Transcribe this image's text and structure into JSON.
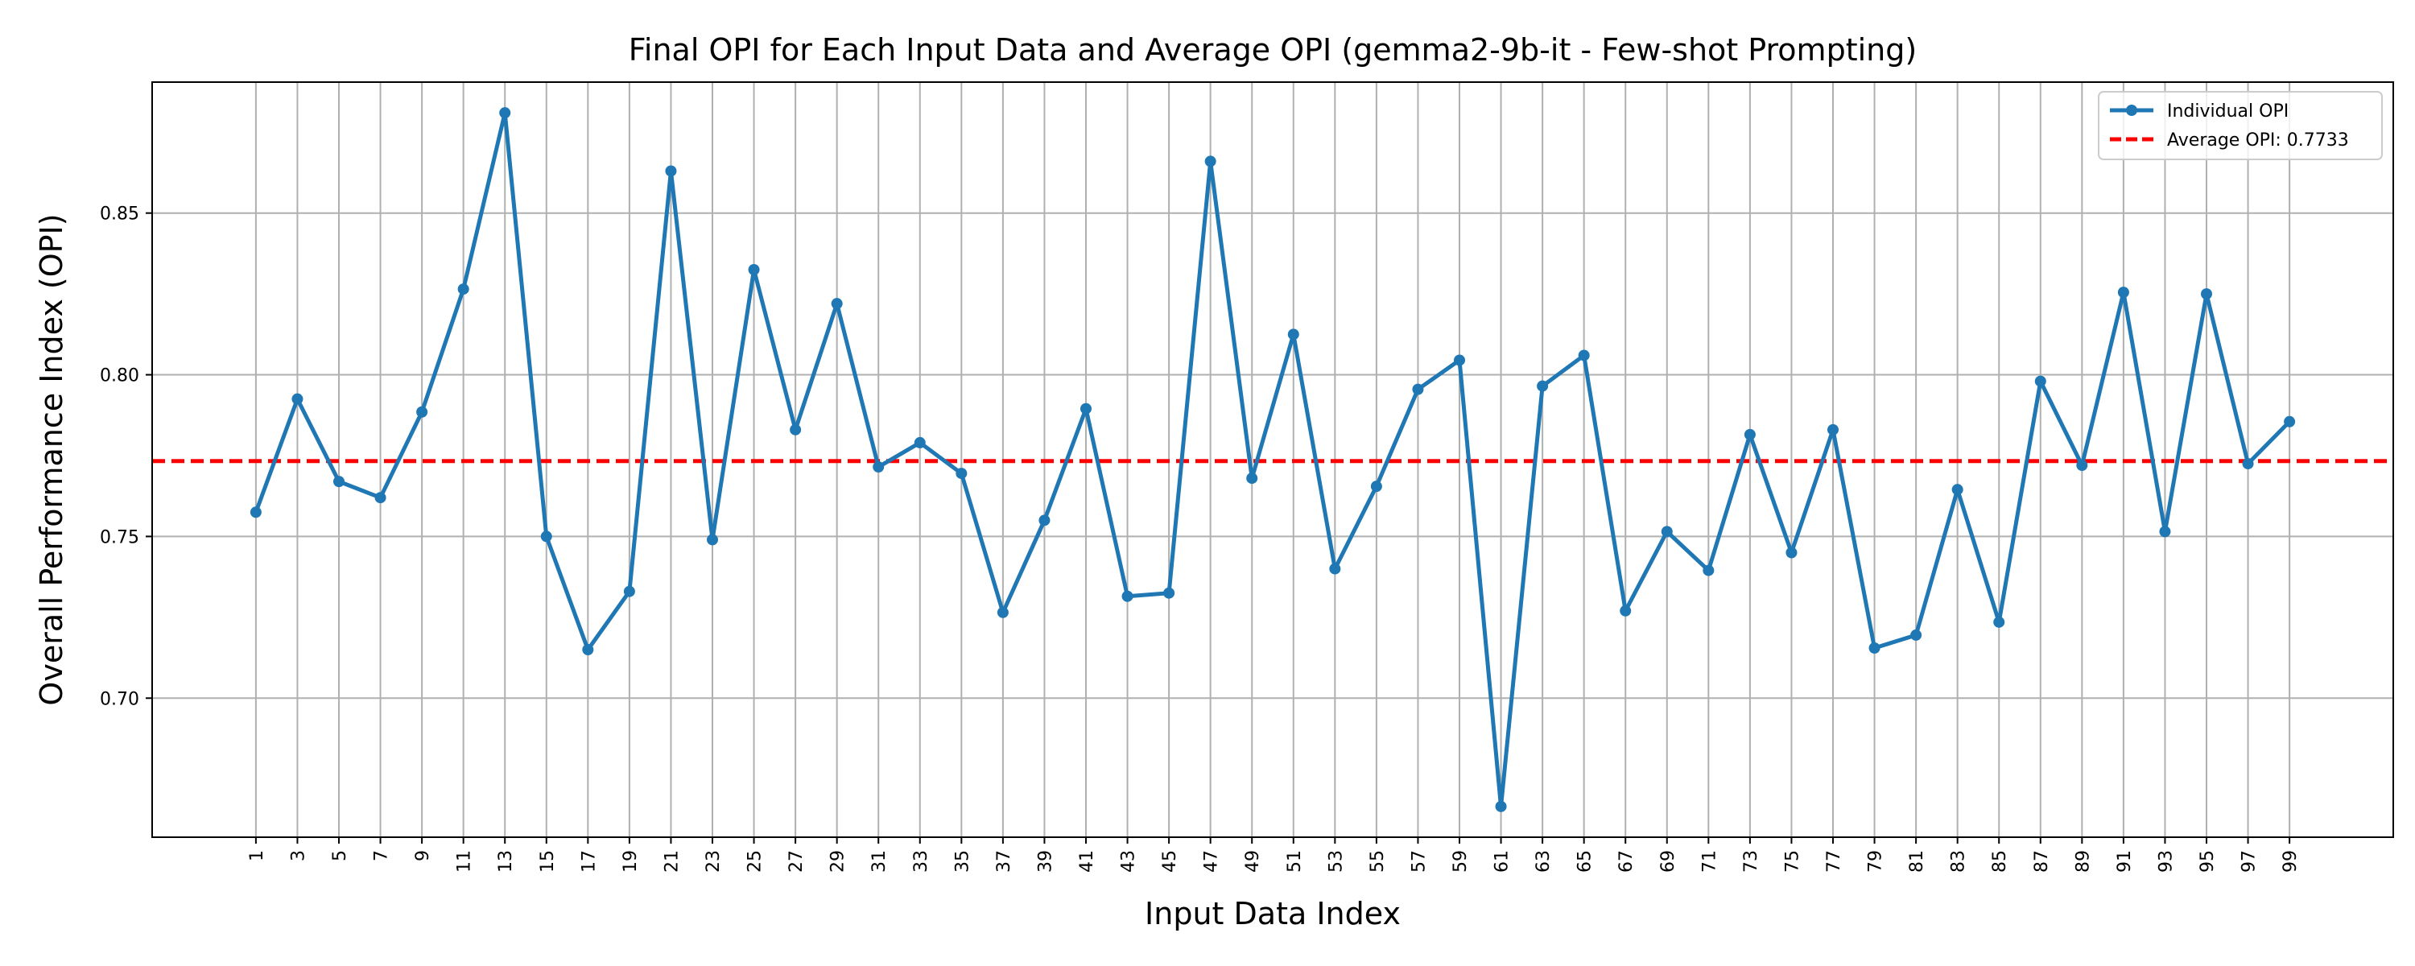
{
  "chart_data": {
    "type": "line",
    "title": "Final OPI for Each Input Data and Average OPI (gemma2-9b-it - Few-shot Prompting)",
    "xlabel": "Input Data Index",
    "ylabel": "Overall Performance Index (OPI)",
    "x": [
      1,
      3,
      5,
      7,
      9,
      11,
      13,
      15,
      17,
      19,
      21,
      23,
      25,
      27,
      29,
      31,
      33,
      35,
      37,
      39,
      41,
      43,
      45,
      47,
      49,
      51,
      53,
      55,
      57,
      59,
      61,
      63,
      65,
      67,
      69,
      71,
      73,
      75,
      77,
      79,
      81,
      83,
      85,
      87,
      89,
      91,
      93,
      95,
      97,
      99
    ],
    "xticks": [
      "1",
      "3",
      "5",
      "7",
      "9",
      "11",
      "13",
      "15",
      "17",
      "19",
      "21",
      "23",
      "25",
      "27",
      "29",
      "31",
      "33",
      "35",
      "37",
      "39",
      "41",
      "43",
      "45",
      "47",
      "49",
      "51",
      "53",
      "55",
      "57",
      "59",
      "61",
      "63",
      "65",
      "67",
      "69",
      "71",
      "73",
      "75",
      "77",
      "79",
      "81",
      "83",
      "85",
      "87",
      "89",
      "91",
      "93",
      "95",
      "97",
      "99"
    ],
    "xlim": [
      -4,
      104
    ],
    "ylim": [
      0.657,
      0.8905
    ],
    "yticks": [
      0.7,
      0.75,
      0.8,
      0.85
    ],
    "ytick_labels": [
      "0.70",
      "0.75",
      "0.80",
      "0.85"
    ],
    "grid": true,
    "legend_position": "top-right",
    "series": [
      {
        "name": "Individual OPI",
        "color": "#1f77b4",
        "values": [
          0.7575,
          0.7925,
          0.767,
          0.762,
          0.7885,
          0.8265,
          0.881,
          0.75,
          0.715,
          0.733,
          0.863,
          0.749,
          0.8325,
          0.783,
          0.822,
          0.7715,
          0.779,
          0.7695,
          0.7265,
          0.755,
          0.7895,
          0.7315,
          0.7325,
          0.866,
          0.768,
          0.8125,
          0.74,
          0.7655,
          0.7955,
          0.8045,
          0.6665,
          0.7965,
          0.806,
          0.727,
          0.7515,
          0.7395,
          0.7815,
          0.745,
          0.783,
          0.7155,
          0.7195,
          0.7645,
          0.7235,
          0.798,
          0.772,
          0.8255,
          0.7515,
          0.825,
          0.7725,
          0.7855
        ]
      }
    ],
    "reference_line": {
      "name": "Average OPI: 0.7733",
      "value": 0.7733,
      "color": "#ff0000",
      "style": "dashed"
    }
  }
}
